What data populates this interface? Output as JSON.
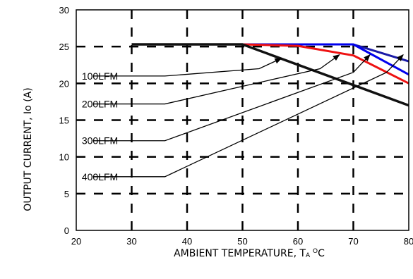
{
  "chart_data": {
    "type": "line",
    "title": "",
    "xlabel": "AMBIENT TEMPERATURE, TA °C",
    "xlabel_parts": {
      "main": "AMBIENT TEMPERATURE, T",
      "sub": "A",
      "sup": "O",
      "unit": "C"
    },
    "ylabel": "OUTPUT CURRENT, Io  (A)",
    "xlim": [
      20,
      80
    ],
    "ylim": [
      0,
      30
    ],
    "x_ticks": [
      "20",
      "30",
      "40",
      "50",
      "60",
      "70",
      "80"
    ],
    "y_ticks": [
      "0",
      "5",
      "10",
      "15",
      "20",
      "25",
      "30"
    ],
    "grid": true,
    "grid_style": "dashed",
    "series": [
      {
        "name": "400LFM",
        "color": "#1a1aa6",
        "x": [
          30,
          50,
          70,
          80
        ],
        "y": [
          25.3,
          25.3,
          25.3,
          23.0
        ]
      },
      {
        "name": "300LFM",
        "color": "#0000ee",
        "x": [
          30,
          50,
          70,
          80
        ],
        "y": [
          25.3,
          25.3,
          25.3,
          21.2
        ]
      },
      {
        "name": "200LFM",
        "color": "#ee1111",
        "x": [
          30,
          50,
          60,
          70,
          80
        ],
        "y": [
          25.3,
          25.3,
          25.1,
          23.8,
          20.0
        ]
      },
      {
        "name": "100LFM",
        "color": "#111111",
        "x": [
          30,
          50,
          80
        ],
        "y": [
          25.3,
          25.3,
          17.0
        ]
      }
    ],
    "annotations": [
      {
        "label": "100LFM",
        "label_at": [
          21,
          21
        ],
        "arrow_points": [
          [
            23,
            21
          ],
          [
            36,
            21
          ],
          [
            53,
            22
          ],
          [
            57,
            23.4
          ]
        ]
      },
      {
        "label": "200LFM",
        "label_at": [
          21,
          17.2
        ],
        "arrow_points": [
          [
            23,
            17.2
          ],
          [
            36,
            17.2
          ],
          [
            64,
            22
          ],
          [
            67.5,
            23.9
          ]
        ]
      },
      {
        "label": "300LFM",
        "label_at": [
          21,
          12.2
        ],
        "arrow_points": [
          [
            23,
            12.2
          ],
          [
            36,
            12.2
          ],
          [
            70,
            21.5
          ],
          [
            73,
            23.9
          ]
        ]
      },
      {
        "label": "400LFM",
        "label_at": [
          21,
          7.3
        ],
        "arrow_points": [
          [
            23,
            7.3
          ],
          [
            36,
            7.3
          ],
          [
            76,
            21.5
          ],
          [
            79,
            23.9
          ]
        ]
      }
    ]
  }
}
